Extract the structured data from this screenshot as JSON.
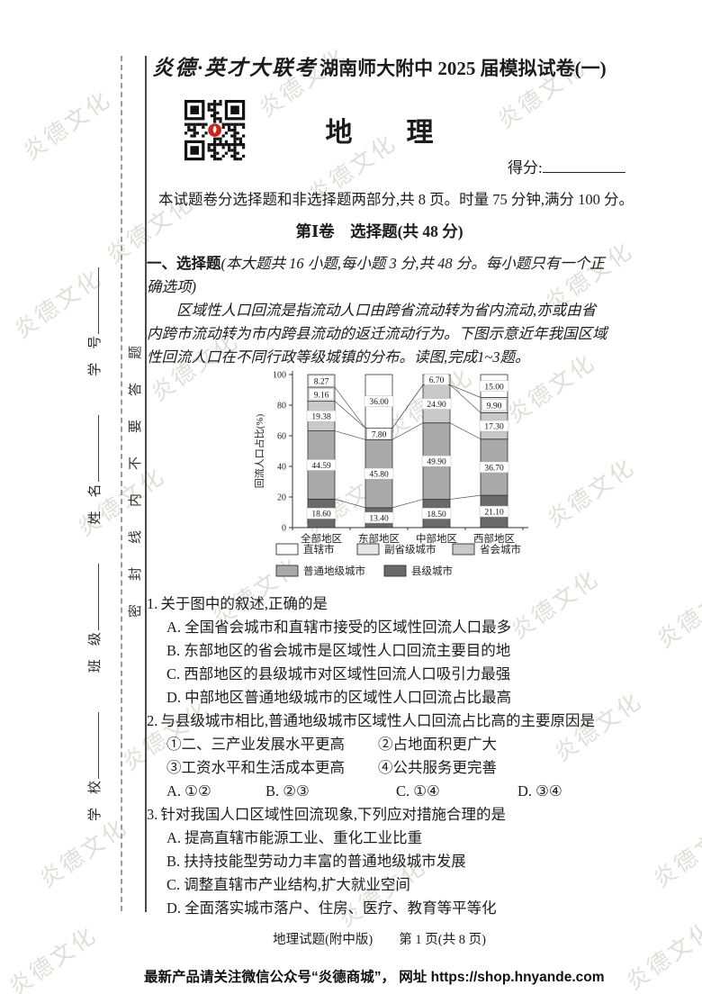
{
  "header": {
    "title_calligraphy": "炎德·英才大联考",
    "title_rest": "湖南师大附中 2025 届模拟试卷(一)",
    "subject": "地　　理",
    "score_label": "得分:",
    "instructions": "本试题卷分选择题和非选择题两部分,共 8 页。时量 75 分钟,满分 100 分。",
    "section_title": "第Ⅰ卷　选择题(共 48 分)"
  },
  "body": {
    "part_heading": "一、选择题",
    "part_note": "(本大题共 16 小题,每小题 3 分,共 48 分。每小题只有一个正确选项)",
    "intro": "区域性人口回流是指流动人口由跨省流动转为省内流动,亦或由省内跨市流动转为市内跨县流动的返迁流动行为。下图示意近年我国区域性回流人口在不同行政等级城镇的分布。读图,完成1~3题。"
  },
  "chart_data": {
    "type": "bar",
    "stacked": true,
    "title": "",
    "ylabel": "回流人口占比(%)",
    "xlabel": "",
    "ylim": [
      0,
      100
    ],
    "yticks": [
      0,
      20,
      40,
      60,
      80,
      100
    ],
    "grid": false,
    "legend_position": "bottom",
    "categories": [
      "全部地区",
      "东部地区",
      "中部地区",
      "西部地区"
    ],
    "series": [
      {
        "name": "县级城市",
        "color": "#6a6a6a",
        "values": [
          18.6,
          13.4,
          18.5,
          21.1
        ],
        "labels": [
          "18.60",
          "13.40",
          "18.50",
          "21.10"
        ]
      },
      {
        "name": "普通地级城市",
        "color": "#a9a9a9",
        "values": [
          44.59,
          45.8,
          49.9,
          36.7
        ],
        "labels": [
          "44.59",
          "45.80",
          "49.90",
          "36.70"
        ]
      },
      {
        "name": "省会城市",
        "color": "#c9c9c9",
        "values": [
          19.38,
          7.8,
          24.9,
          17.3
        ],
        "labels": [
          "19.38",
          "7.80",
          "24.90",
          "17.30"
        ]
      },
      {
        "name": "副省级城市",
        "color": "#e6e6e6",
        "values": [
          9.16,
          0,
          0,
          9.9
        ],
        "labels": [
          "9.16",
          "",
          "",
          "9.90"
        ]
      },
      {
        "name": "直辖市",
        "color": "#ffffff",
        "values": [
          8.27,
          36.0,
          6.7,
          15.0
        ],
        "labels": [
          "8.27",
          "36.00",
          "6.70",
          "15.00"
        ]
      }
    ],
    "legend_rows": [
      [
        "直辖市",
        "副省级城市",
        "省会城市"
      ],
      [
        "普通地级城市",
        "县级城市"
      ]
    ]
  },
  "questions": [
    {
      "num": "1.",
      "stem": "关于图中的叙述,正确的是",
      "options": [
        "A. 全国省会城市和直辖市接受的区域性回流人口最多",
        "B. 东部地区的省会城市是区域性人口回流主要目的地",
        "C. 西部地区的县级城市对区域性回流人口吸引力最强",
        "D. 中部地区普通地级城市的区域性人口回流占比最高"
      ]
    },
    {
      "num": "2.",
      "stem": "与县级城市相比,普通地级城市区域性人口回流占比高的主要原因是",
      "subitems": [
        "①二、三产业发展水平更高",
        "②占地面积更广大",
        "③工资水平和生活成本更高",
        "④公共服务更完善"
      ],
      "options": [
        "A. ①②",
        "B. ②③",
        "C. ①④",
        "D. ③④"
      ]
    },
    {
      "num": "3.",
      "stem": "针对我国人口区域性回流现象,下列应对措施合理的是",
      "options": [
        "A. 提高直辖市能源工业、重化工业比重",
        "B. 扶持技能型劳动力丰富的普通地级城市发展",
        "C. 调整直辖市产业结构,扩大就业空间",
        "D. 全面落实城市落户、住房、医疗、教育等平等化"
      ]
    }
  ],
  "sidebar": {
    "seal_text": "密封线内不要答题",
    "fields": [
      {
        "label": "学　校"
      },
      {
        "label": "班　级"
      },
      {
        "label": "姓　名"
      },
      {
        "label": "学　号"
      }
    ]
  },
  "footer": {
    "page_label": "地理试题(附中版)　　第 1 页(共 8 页)",
    "promo": "最新产品请关注微信公众号“炎德商城”， 网址 https://shop.hnyande.com"
  },
  "watermark": {
    "text": "炎德文化"
  }
}
